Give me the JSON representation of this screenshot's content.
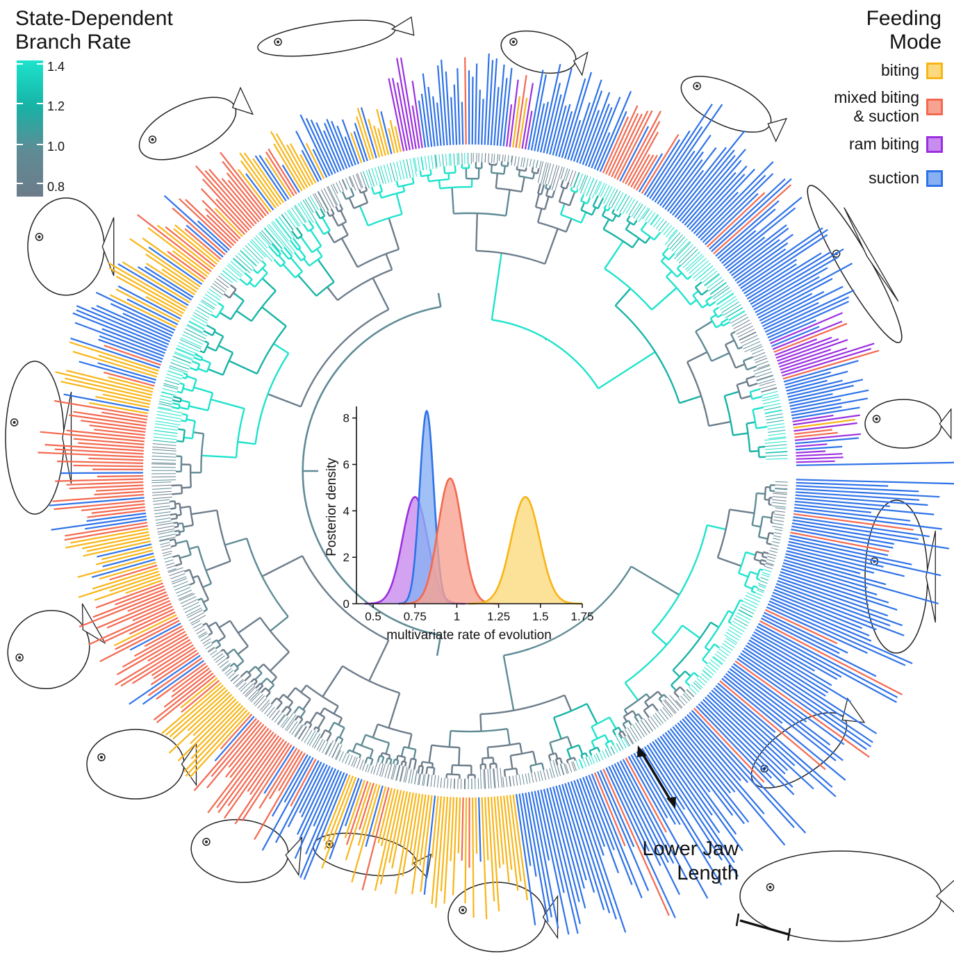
{
  "rate_legend": {
    "title_line1": "State-Dependent",
    "title_line2": "Branch Rate",
    "ticks": [
      "1.4",
      "1.2",
      "1.0",
      "0.8"
    ],
    "ramp_colors": [
      "#1de3cc",
      "#17b3a6",
      "#5f8b95",
      "#6c7c8a"
    ]
  },
  "feeding_legend": {
    "title_line1": "Feeding",
    "title_line2": "Mode",
    "items": [
      {
        "label_line1": "biting",
        "label_line2": "",
        "color": "#f8b516",
        "fill": "#fbd97e"
      },
      {
        "label_line1": "mixed biting",
        "label_line2": "& suction",
        "color": "#f3684f",
        "fill": "#f7a391"
      },
      {
        "label_line1": "ram biting",
        "label_line2": "",
        "color": "#9b2fe0",
        "fill": "#c88cef"
      },
      {
        "label_line1": "suction",
        "label_line2": "",
        "color": "#2e72e8",
        "fill": "#89b0f2"
      }
    ]
  },
  "jaw_annotation": {
    "line1": "Lower Jaw",
    "line2": "Length"
  },
  "chart_data": {
    "type": "area",
    "title": "",
    "xlabel": "multivariate rate of evolution",
    "ylabel": "Posterior density",
    "xlim": [
      0.4,
      1.75
    ],
    "ylim": [
      0,
      8.5
    ],
    "xticks": [
      "0.5",
      "0.75",
      "1",
      "1.25",
      "1.5",
      "1.75"
    ],
    "yticks": [
      "0",
      "2",
      "4",
      "6",
      "8"
    ],
    "grid": false,
    "series": [
      {
        "state": "ram biting",
        "color": "#9b2fe0",
        "fill": "#c88cef",
        "mean": 0.75,
        "sd": 0.075,
        "peak": 4.6
      },
      {
        "state": "suction",
        "color": "#2e72e8",
        "fill": "#89b0f2",
        "mean": 0.82,
        "sd": 0.042,
        "peak": 8.3
      },
      {
        "state": "mixed biting & suction",
        "color": "#f3684f",
        "fill": "#f7a391",
        "mean": 0.96,
        "sd": 0.072,
        "peak": 5.4
      },
      {
        "state": "biting",
        "color": "#f8b516",
        "fill": "#fbd97e",
        "mean": 1.41,
        "sd": 0.085,
        "peak": 4.6
      }
    ]
  }
}
